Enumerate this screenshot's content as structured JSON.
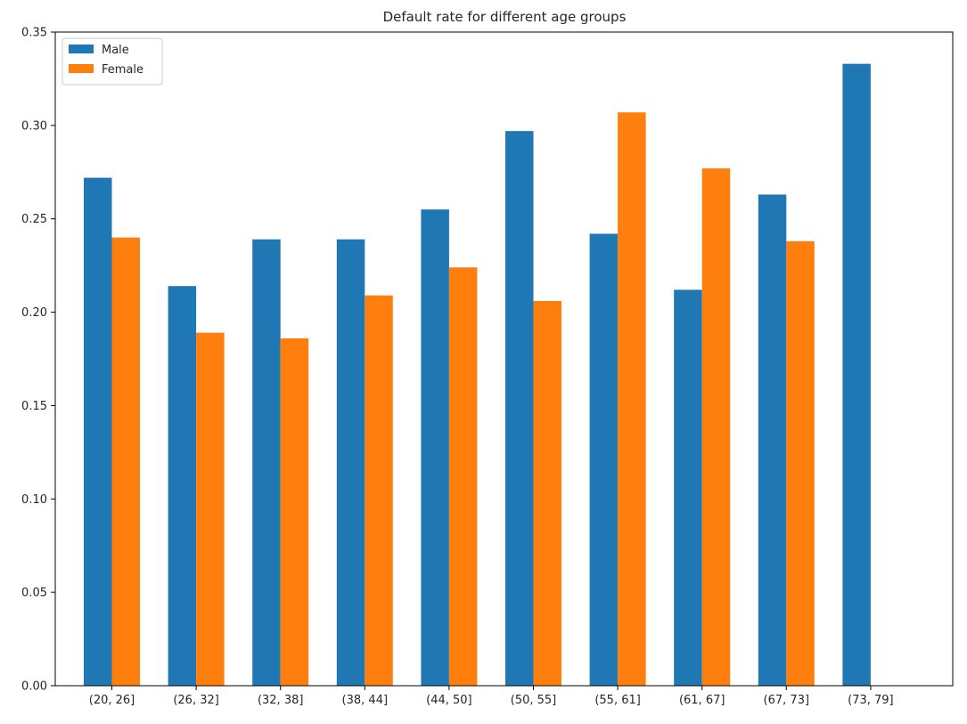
{
  "chart_data": {
    "type": "bar",
    "title": "Default rate for different age groups",
    "xlabel": "",
    "ylabel": "",
    "categories": [
      "(20, 26]",
      "(26, 32]",
      "(32, 38]",
      "(38, 44]",
      "(44, 50]",
      "(50, 55]",
      "(55, 61]",
      "(61, 67]",
      "(67, 73]",
      "(73, 79]"
    ],
    "series": [
      {
        "name": "Male",
        "color": "#1f77b4",
        "values": [
          0.272,
          0.214,
          0.239,
          0.239,
          0.255,
          0.297,
          0.242,
          0.212,
          0.263,
          0.333
        ]
      },
      {
        "name": "Female",
        "color": "#ff7f0e",
        "values": [
          0.24,
          0.189,
          0.186,
          0.209,
          0.224,
          0.206,
          0.307,
          0.277,
          0.238,
          0.0
        ]
      }
    ],
    "ylim": [
      0,
      0.35
    ],
    "yticks": [
      0.0,
      0.05,
      0.1,
      0.15,
      0.2,
      0.25,
      0.3,
      0.35
    ],
    "ytick_labels": [
      "0.00",
      "0.05",
      "0.10",
      "0.15",
      "0.20",
      "0.25",
      "0.30",
      "0.35"
    ],
    "grid": false,
    "legend_position": "top-left"
  }
}
